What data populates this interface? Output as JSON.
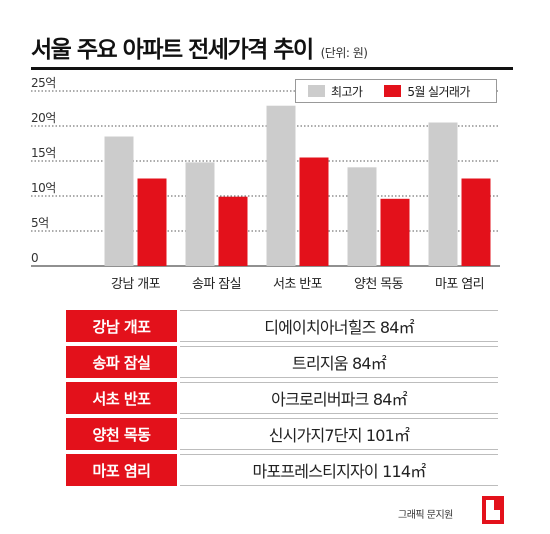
{
  "title": "서울 주요 아파트 전세가격 추이",
  "unit": "(단위: 원)",
  "legend": {
    "items": [
      {
        "label": "최고가",
        "color": "#cccccc"
      },
      {
        "label": "5월 실거래가",
        "color": "#e3111b"
      }
    ]
  },
  "chart_data": {
    "type": "bar",
    "categories": [
      "강남 개포",
      "송파 잠실",
      "서초 반포",
      "양천 목동",
      "마포 염리"
    ],
    "series": [
      {
        "name": "최고가",
        "color": "#cccccc",
        "values": [
          18.5,
          14.8,
          22.9,
          14.1,
          20.5
        ]
      },
      {
        "name": "5월 실거래가",
        "color": "#e3111b",
        "values": [
          12.5,
          9.9,
          15.5,
          9.6,
          12.5
        ]
      }
    ],
    "yticks": [
      {
        "value": 0,
        "label": "0"
      },
      {
        "value": 5,
        "label": "5억"
      },
      {
        "value": 10,
        "label": "10억"
      },
      {
        "value": 15,
        "label": "15억"
      },
      {
        "value": 20,
        "label": "20억"
      },
      {
        "value": 25,
        "label": "25억"
      }
    ],
    "ylim": [
      0,
      25
    ],
    "grid": true
  },
  "table": {
    "rows": [
      {
        "key": "강남 개포",
        "value": "디에이치아너힐즈 84㎡"
      },
      {
        "key": "송파 잠실",
        "value": "트리지움 84㎡"
      },
      {
        "key": "서초 반포",
        "value": "아크로리버파크 84㎡"
      },
      {
        "key": "양천 목동",
        "value": "신시가지7단지 101㎡"
      },
      {
        "key": "마포 염리",
        "value": "마포프레스티지자이 114㎡"
      }
    ]
  },
  "credit": "그래픽 문지원",
  "colors": {
    "accent": "#e3111b",
    "max_bar": "#cccccc"
  }
}
